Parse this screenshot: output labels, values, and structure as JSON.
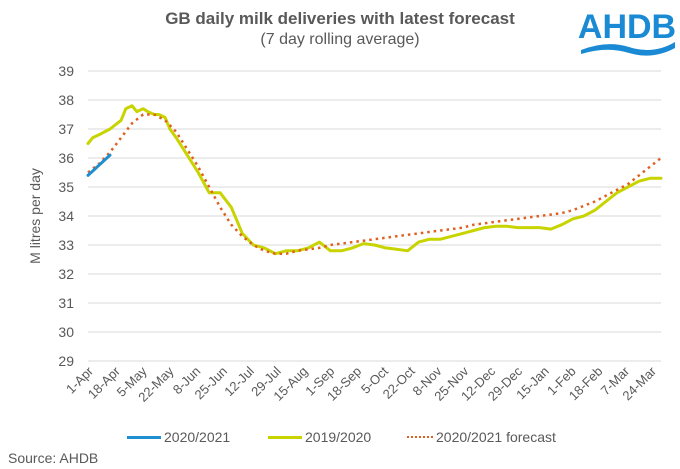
{
  "header": {
    "title": "GB daily milk deliveries with latest forecast",
    "subtitle": "(7 day rolling average)",
    "logo_text": "AHDB"
  },
  "source": "Source: AHDB",
  "colors": {
    "series_2020_2021": "#1f8fd1",
    "series_2019_2020": "#c8d400",
    "series_forecast": "#e06020",
    "grid": "#d9d9d9",
    "text": "#595959",
    "logo": "#1a8ad4"
  },
  "chart_data": {
    "type": "line",
    "title": "GB daily milk deliveries with latest forecast",
    "subtitle": "(7 day rolling average)",
    "xlabel": "",
    "ylabel": "M litres per day",
    "ylim": [
      29,
      39
    ],
    "yticks": [
      29,
      30,
      31,
      32,
      33,
      34,
      35,
      36,
      37,
      38,
      39
    ],
    "grid": true,
    "legend_position": "bottom",
    "x_tick_labels": [
      "1-Apr",
      "18-Apr",
      "5-May",
      "22-May",
      "8-Jun",
      "25-Jun",
      "12-Jul",
      "29-Jul",
      "15-Aug",
      "1-Sep",
      "18-Sep",
      "5-Oct",
      "22-Oct",
      "8-Nov",
      "25-Nov",
      "12-Dec",
      "29-Dec",
      "15-Jan",
      "1-Feb",
      "18-Feb",
      "7-Mar",
      "24-Mar"
    ],
    "x_days_note": "x values are day index from 1-Apr (0) to 31-Mar (364)",
    "series": [
      {
        "name": "2020/2021",
        "style": "solid",
        "x": [
          0,
          2,
          4,
          6,
          8,
          10,
          12,
          14
        ],
        "values": [
          35.4,
          35.5,
          35.6,
          35.7,
          35.8,
          35.9,
          36.0,
          36.1
        ]
      },
      {
        "name": "2019/2020",
        "style": "solid",
        "x": [
          0,
          3,
          7,
          14,
          21,
          24,
          28,
          31,
          35,
          38,
          42,
          45,
          49,
          52,
          56,
          63,
          70,
          77,
          84,
          91,
          98,
          105,
          112,
          119,
          126,
          133,
          140,
          147,
          154,
          161,
          168,
          175,
          182,
          189,
          196,
          203,
          210,
          217,
          224,
          231,
          238,
          245,
          252,
          259,
          266,
          273,
          280,
          287,
          294,
          301,
          308,
          315,
          322,
          329,
          336,
          343,
          350,
          357,
          364
        ],
        "values": [
          36.5,
          36.7,
          36.8,
          37.0,
          37.3,
          37.7,
          37.8,
          37.6,
          37.7,
          37.6,
          37.5,
          37.5,
          37.4,
          37.0,
          36.7,
          36.1,
          35.5,
          34.8,
          34.8,
          34.3,
          33.4,
          33.0,
          32.9,
          32.7,
          32.8,
          32.8,
          32.9,
          33.1,
          32.8,
          32.8,
          32.9,
          33.05,
          33.0,
          32.9,
          32.85,
          32.8,
          33.1,
          33.2,
          33.2,
          33.3,
          33.4,
          33.5,
          33.6,
          33.65,
          33.65,
          33.6,
          33.6,
          33.6,
          33.55,
          33.7,
          33.9,
          34.0,
          34.2,
          34.5,
          34.8,
          35.0,
          35.2,
          35.3,
          35.3
        ]
      },
      {
        "name": "2020/2021 forecast",
        "style": "dotted",
        "x": [
          0,
          7,
          14,
          21,
          28,
          35,
          42,
          49,
          56,
          63,
          70,
          77,
          84,
          91,
          98,
          105,
          112,
          119,
          126,
          133,
          140,
          147,
          154,
          161,
          168,
          175,
          182,
          189,
          196,
          203,
          210,
          217,
          224,
          231,
          238,
          245,
          252,
          259,
          266,
          273,
          280,
          287,
          294,
          301,
          308,
          315,
          322,
          329,
          336,
          343,
          350,
          357,
          364
        ],
        "values": [
          35.5,
          35.8,
          36.2,
          36.7,
          37.2,
          37.5,
          37.5,
          37.3,
          36.9,
          36.3,
          35.7,
          35.0,
          34.3,
          33.7,
          33.3,
          33.0,
          32.8,
          32.7,
          32.7,
          32.8,
          32.85,
          32.9,
          33.0,
          33.05,
          33.1,
          33.15,
          33.2,
          33.25,
          33.3,
          33.35,
          33.4,
          33.45,
          33.5,
          33.55,
          33.6,
          33.7,
          33.75,
          33.8,
          33.85,
          33.9,
          33.95,
          34.0,
          34.05,
          34.1,
          34.2,
          34.35,
          34.5,
          34.7,
          34.9,
          35.1,
          35.4,
          35.7,
          36.0
        ]
      }
    ]
  }
}
